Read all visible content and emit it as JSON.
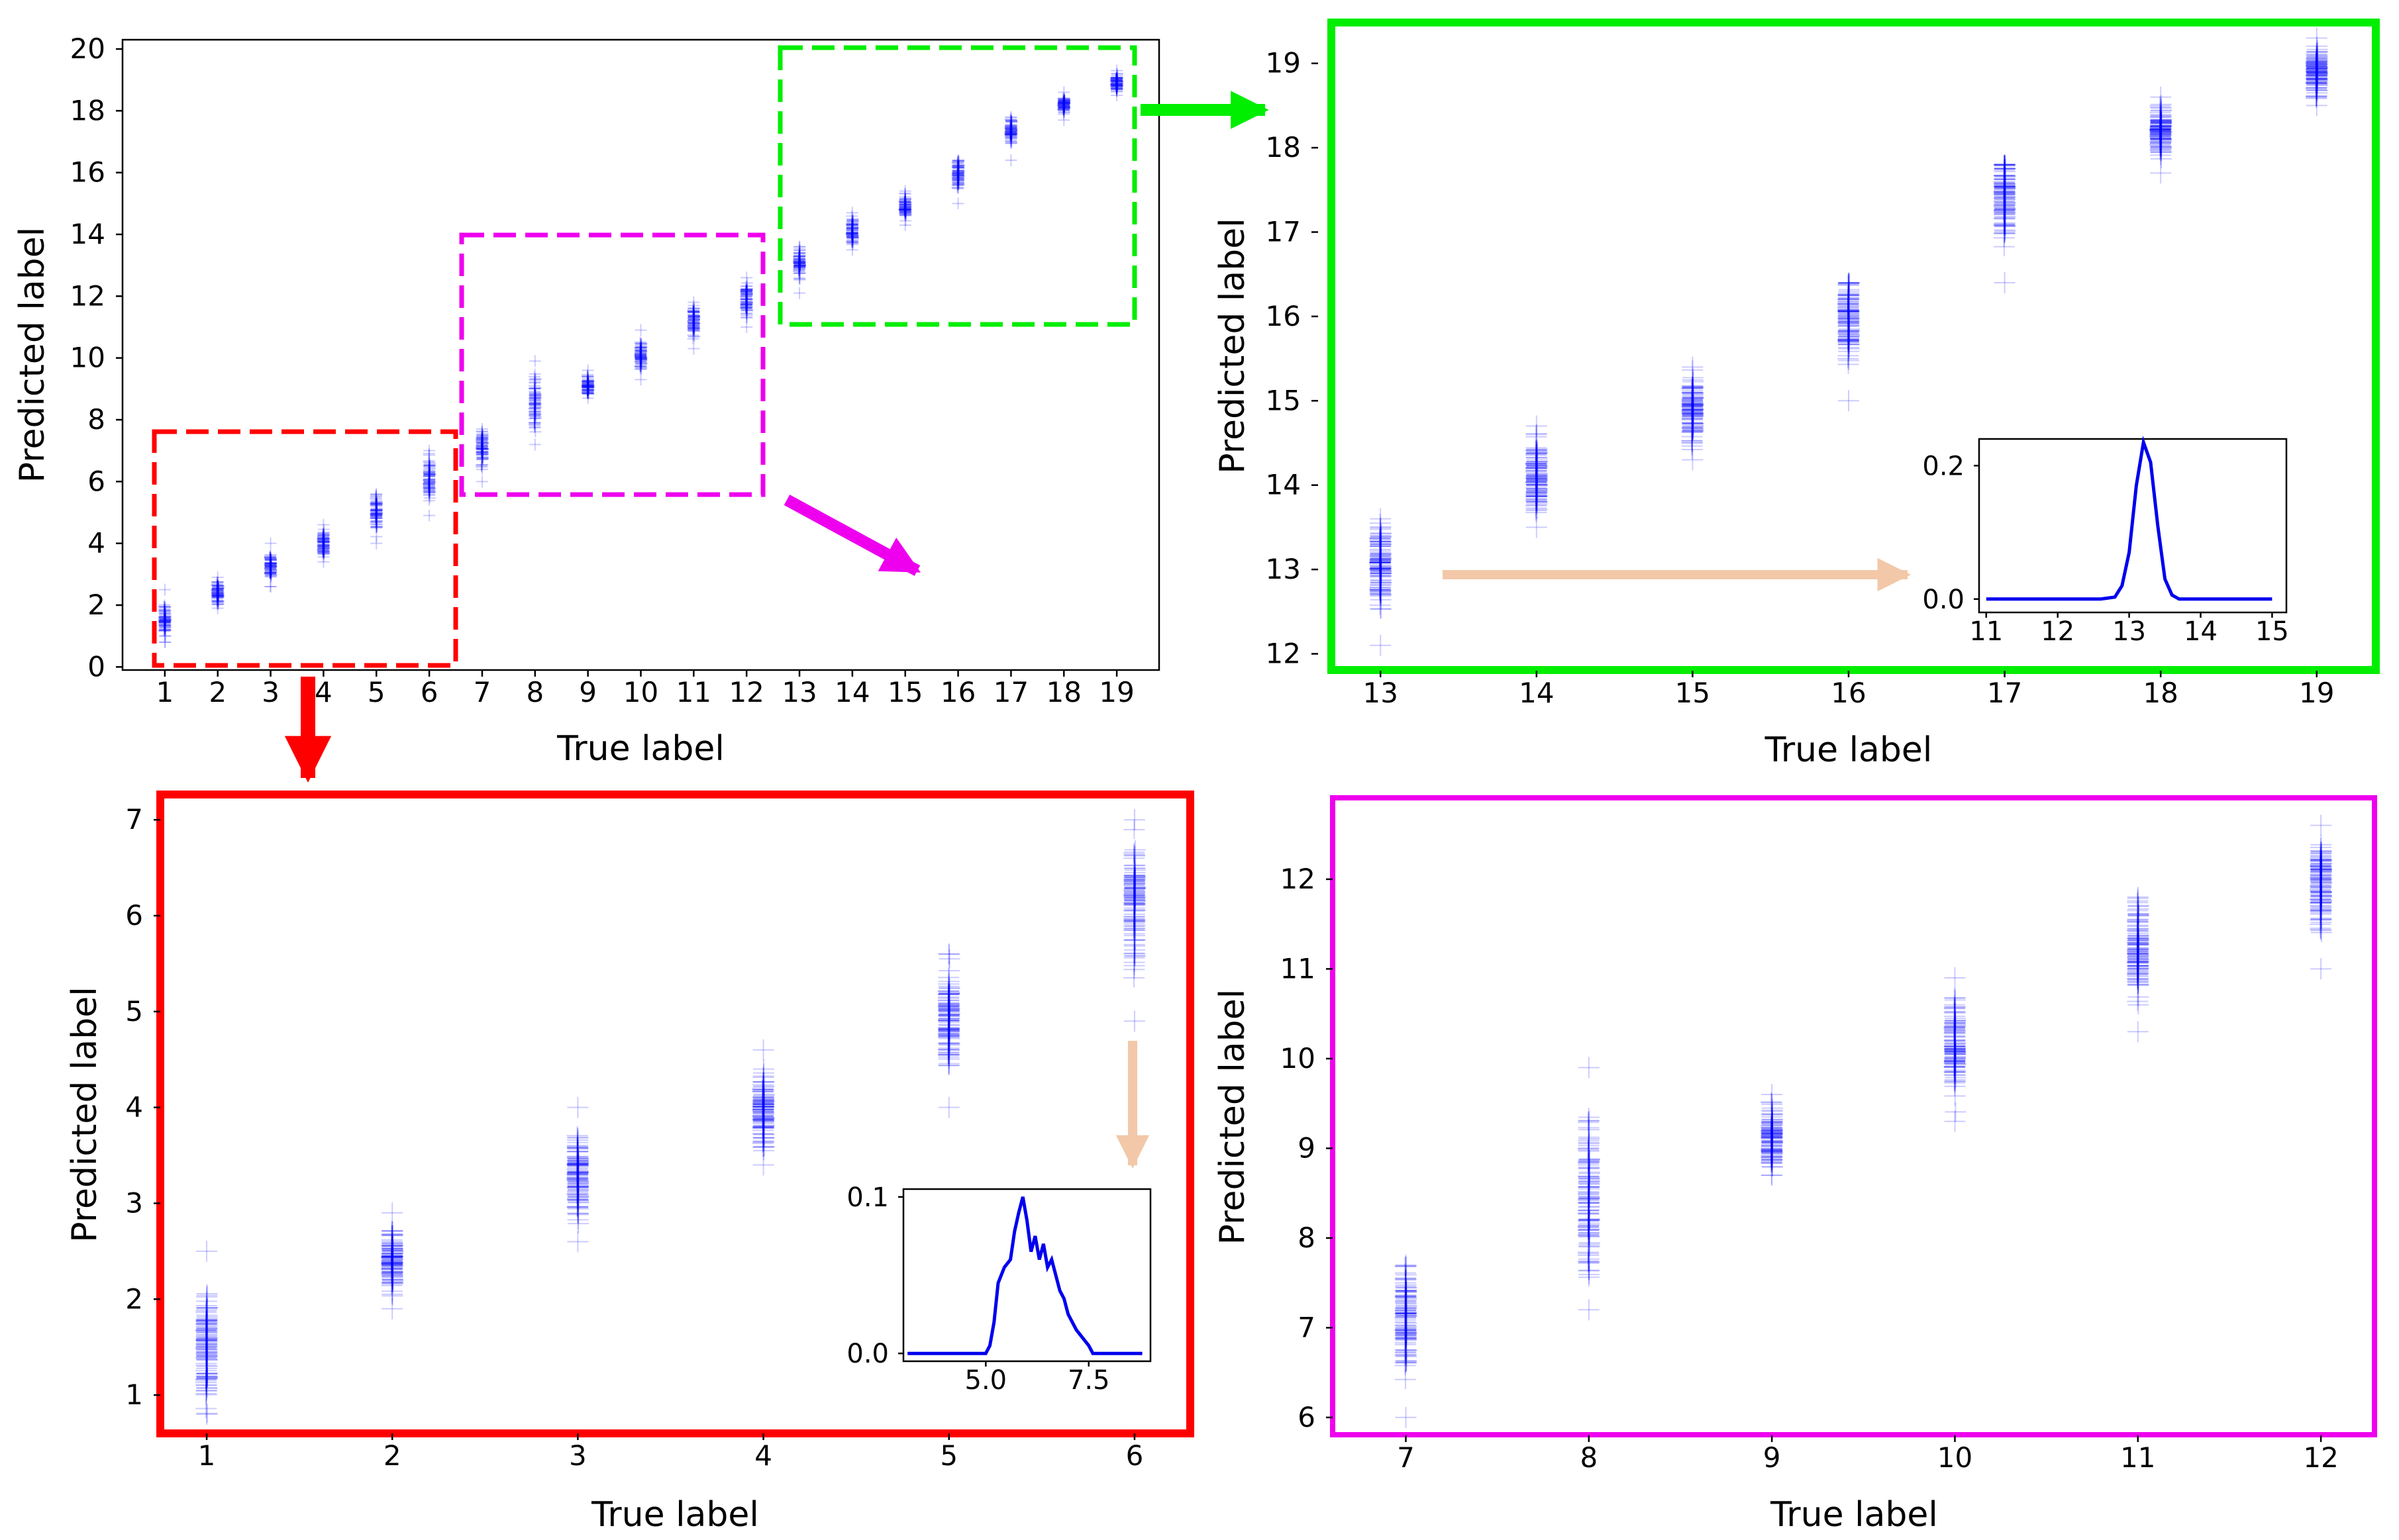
{
  "chart_data": [
    {
      "id": "overview",
      "type": "scatter",
      "xlabel": "True label",
      "ylabel": "Predicted label",
      "xlim": [
        0.2,
        19.8
      ],
      "ylim": [
        -0.1,
        20.3
      ],
      "xticks": [
        1,
        2,
        3,
        4,
        5,
        6,
        7,
        8,
        9,
        10,
        11,
        12,
        13,
        14,
        15,
        16,
        17,
        18,
        19
      ],
      "yticks": [
        0,
        2,
        4,
        6,
        8,
        10,
        12,
        14,
        16,
        18,
        20
      ],
      "points": [
        {
          "x": 1,
          "center": 1.5,
          "low": 0.8,
          "high": 2.5
        },
        {
          "x": 2,
          "center": 2.4,
          "low": 1.9,
          "high": 2.9
        },
        {
          "x": 3,
          "center": 3.3,
          "low": 2.6,
          "high": 4.0
        },
        {
          "x": 4,
          "center": 4.0,
          "low": 3.4,
          "high": 4.6
        },
        {
          "x": 5,
          "center": 5.0,
          "low": 4.0,
          "high": 5.6
        },
        {
          "x": 6,
          "center": 6.1,
          "low": 4.9,
          "high": 7.0
        },
        {
          "x": 7,
          "center": 7.1,
          "low": 6.0,
          "high": 7.7
        },
        {
          "x": 8,
          "center": 8.5,
          "low": 7.2,
          "high": 9.9
        },
        {
          "x": 9,
          "center": 9.1,
          "low": 8.7,
          "high": 9.6
        },
        {
          "x": 10,
          "center": 10.1,
          "low": 9.3,
          "high": 10.9
        },
        {
          "x": 11,
          "center": 11.2,
          "low": 10.3,
          "high": 11.8
        },
        {
          "x": 12,
          "center": 11.9,
          "low": 11.0,
          "high": 12.6
        },
        {
          "x": 13,
          "center": 13.1,
          "low": 12.1,
          "high": 13.6
        },
        {
          "x": 14,
          "center": 14.1,
          "low": 13.5,
          "high": 14.7
        },
        {
          "x": 15,
          "center": 14.9,
          "low": 14.3,
          "high": 15.4
        },
        {
          "x": 16,
          "center": 16.0,
          "low": 15.0,
          "high": 16.4
        },
        {
          "x": 17,
          "center": 17.4,
          "low": 16.4,
          "high": 17.8
        },
        {
          "x": 18,
          "center": 18.2,
          "low": 17.7,
          "high": 18.6
        },
        {
          "x": 19,
          "center": 18.9,
          "low": 18.5,
          "high": 19.3
        }
      ]
    },
    {
      "id": "zoom-high",
      "type": "scatter",
      "xlabel": "True label",
      "ylabel": "Predicted label",
      "xlim": [
        12.6,
        19.4
      ],
      "ylim": [
        11.8,
        19.5
      ],
      "xticks": [
        13,
        14,
        15,
        16,
        17,
        18,
        19
      ],
      "yticks": [
        12,
        13,
        14,
        15,
        16,
        17,
        18,
        19
      ],
      "points": [
        {
          "x": 13,
          "center": 13.1,
          "low": 12.1,
          "high": 13.6
        },
        {
          "x": 14,
          "center": 14.1,
          "low": 13.5,
          "high": 14.7
        },
        {
          "x": 15,
          "center": 14.9,
          "low": 14.3,
          "high": 15.4
        },
        {
          "x": 16,
          "center": 16.0,
          "low": 15.0,
          "high": 16.4
        },
        {
          "x": 17,
          "center": 17.4,
          "low": 16.4,
          "high": 17.8
        },
        {
          "x": 18,
          "center": 18.2,
          "low": 17.7,
          "high": 18.6
        },
        {
          "x": 19,
          "center": 18.9,
          "low": 18.5,
          "high": 19.3
        }
      ]
    },
    {
      "id": "zoom-low",
      "type": "scatter",
      "xlabel": "True label",
      "ylabel": "Predicted label",
      "xlim": [
        0.75,
        6.3
      ],
      "ylim": [
        0.6,
        7.25
      ],
      "xticks": [
        1,
        2,
        3,
        4,
        5,
        6
      ],
      "yticks": [
        1,
        2,
        3,
        4,
        5,
        6,
        7
      ],
      "points": [
        {
          "x": 1,
          "center": 1.5,
          "low": 0.8,
          "high": 2.5
        },
        {
          "x": 2,
          "center": 2.4,
          "low": 1.9,
          "high": 2.9
        },
        {
          "x": 3,
          "center": 3.3,
          "low": 2.6,
          "high": 4.0
        },
        {
          "x": 4,
          "center": 4.0,
          "low": 3.4,
          "high": 4.6
        },
        {
          "x": 5,
          "center": 5.0,
          "low": 4.0,
          "high": 5.6
        },
        {
          "x": 6,
          "center": 6.1,
          "low": 4.9,
          "high": 7.0
        }
      ]
    },
    {
      "id": "zoom-mid",
      "type": "scatter",
      "xlabel": "True label",
      "ylabel": "Predicted label",
      "xlim": [
        6.6,
        12.3
      ],
      "ylim": [
        5.8,
        12.9
      ],
      "xticks": [
        7,
        8,
        9,
        10,
        11,
        12
      ],
      "yticks": [
        6,
        7,
        8,
        9,
        10,
        11,
        12
      ],
      "points": [
        {
          "x": 7,
          "center": 7.1,
          "low": 6.0,
          "high": 7.7
        },
        {
          "x": 8,
          "center": 8.5,
          "low": 7.2,
          "high": 9.9
        },
        {
          "x": 9,
          "center": 9.1,
          "low": 8.7,
          "high": 9.6
        },
        {
          "x": 10,
          "center": 10.1,
          "low": 9.3,
          "high": 10.9
        },
        {
          "x": 11,
          "center": 11.2,
          "low": 10.3,
          "high": 11.8
        },
        {
          "x": 12,
          "center": 11.9,
          "low": 11.0,
          "high": 12.6
        }
      ]
    },
    {
      "id": "inset-high",
      "type": "line",
      "xlim": [
        10.9,
        15.2
      ],
      "ylim": [
        -0.02,
        0.24
      ],
      "xticks": [
        11,
        12,
        13,
        14,
        15
      ],
      "yticks": [
        0.0,
        0.2
      ],
      "ytick_labels": [
        "0.0",
        "0.2"
      ],
      "x": [
        11.0,
        12.6,
        12.8,
        12.9,
        13.0,
        13.1,
        13.2,
        13.3,
        13.4,
        13.5,
        13.6,
        13.7,
        15.0
      ],
      "y": [
        0.0,
        0.0,
        0.003,
        0.02,
        0.07,
        0.17,
        0.235,
        0.205,
        0.11,
        0.03,
        0.006,
        0.0,
        0.0
      ]
    },
    {
      "id": "inset-low",
      "type": "line",
      "xlim": [
        3.0,
        9.0
      ],
      "ylim": [
        -0.005,
        0.105
      ],
      "xticks": [
        5.0,
        7.5
      ],
      "yticks": [
        0.0,
        0.1
      ],
      "xtick_labels": [
        "5.0",
        "7.5"
      ],
      "ytick_labels": [
        "0.0",
        "0.1"
      ],
      "x": [
        3.1,
        5.0,
        5.1,
        5.2,
        5.3,
        5.45,
        5.6,
        5.7,
        5.8,
        5.9,
        6.0,
        6.1,
        6.2,
        6.3,
        6.4,
        6.5,
        6.6,
        6.7,
        6.8,
        6.9,
        7.0,
        7.2,
        7.5,
        7.6,
        8.8
      ],
      "y": [
        0.0,
        0.0,
        0.005,
        0.02,
        0.045,
        0.055,
        0.06,
        0.078,
        0.09,
        0.1,
        0.085,
        0.065,
        0.075,
        0.06,
        0.07,
        0.055,
        0.06,
        0.05,
        0.04,
        0.035,
        0.025,
        0.015,
        0.005,
        0.0,
        0.0
      ]
    }
  ]
}
